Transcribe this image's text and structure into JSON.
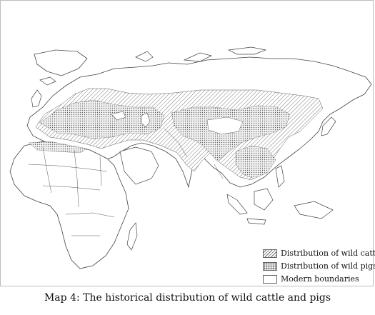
{
  "caption": "Map 4: The historical distribution of wild cattle and pigs",
  "legend": {
    "items": [
      {
        "label": "Distribution of wild cattle",
        "pattern": "diagonal-hatch"
      },
      {
        "label": "Distribution of wild pigs",
        "pattern": "stipple"
      },
      {
        "label": "Modern boundaries",
        "pattern": "outline"
      }
    ]
  },
  "colors": {
    "ink": "#555555",
    "paper": "#ffffff"
  }
}
